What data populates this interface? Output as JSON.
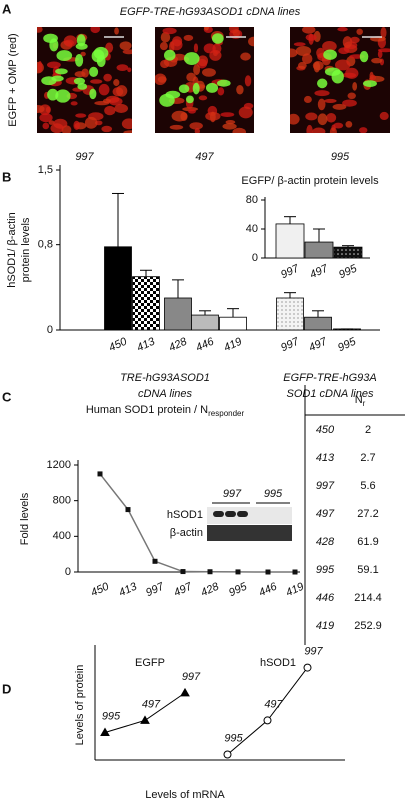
{
  "panel_a": {
    "label": "A",
    "title": "EGFP-TRE-hG93ASOD1 cDNA lines",
    "y_label": "EGFP + OMP (red)",
    "captions": [
      "997",
      "497",
      "995"
    ]
  },
  "panel_b": {
    "label": "B",
    "group_captions": [
      [
        "TRE-hG93ASOD1",
        "cDNA lines"
      ],
      [
        "EGFP-TRE-hG93A",
        "SOD1 cDNA lines"
      ]
    ]
  },
  "panel_c": {
    "label": "C",
    "blot": {
      "lanes": [
        "997",
        "995"
      ],
      "rows": [
        "hSOD1",
        "β-actin"
      ]
    },
    "table": {
      "header": "N",
      "header_sub": "r",
      "rows": [
        [
          "450",
          "2"
        ],
        [
          "413",
          "2.7"
        ],
        [
          "997",
          "5.6"
        ],
        [
          "497",
          "27.2"
        ],
        [
          "428",
          "61.9"
        ],
        [
          "995",
          "59.1"
        ],
        [
          "446",
          "214.4"
        ],
        [
          "419",
          "252.9"
        ]
      ]
    }
  },
  "panel_d": {
    "label": "D"
  },
  "chart_data": [
    {
      "type": "bar",
      "y_label": [
        "hSOD1/ β-actin",
        "protein levels"
      ],
      "categories": [
        "450",
        "413",
        "428",
        "446",
        "419",
        "997",
        "497",
        "995"
      ],
      "values": [
        0.78,
        0.5,
        0.3,
        0.14,
        0.12,
        0.3,
        0.12,
        0.01
      ],
      "errors": [
        0.5,
        0.06,
        0.17,
        0.04,
        0.08,
        0.05,
        0.06,
        0
      ],
      "colors": [
        "#000000",
        "#ffffff",
        "#888888",
        "#bbbbbb",
        "#ffffff",
        "#eeeeee",
        "#888888",
        "#111111"
      ],
      "fill_patterns": [
        "solid",
        "checker",
        "solid",
        "solid",
        "solid",
        "light-dots",
        "solid",
        "dark-dots"
      ],
      "ylim": [
        0,
        1.5
      ],
      "yticks": [
        0,
        {
          "value": 0.8,
          "label": "0,8"
        },
        {
          "value": 1.5,
          "label": "1,5"
        }
      ]
    },
    {
      "type": "bar",
      "title": "EGFP/ β-actin protein levels",
      "categories": [
        "997",
        "497",
        "995"
      ],
      "values": [
        47,
        22,
        15
      ],
      "errors": [
        10,
        18,
        2
      ],
      "colors": [
        "#f0f0f0",
        "#888888",
        "#333333"
      ],
      "fill_patterns": [
        "solid",
        "solid",
        "dark-dots"
      ],
      "ylim": [
        0,
        80
      ],
      "yticks": [
        0,
        40,
        80
      ]
    },
    {
      "type": "line",
      "title": "Human SOD1 protein / N",
      "title_sub": "responder",
      "y_label": "Fold levels",
      "categories": [
        "450",
        "413",
        "997",
        "497",
        "428",
        "995",
        "446",
        "419"
      ],
      "values": [
        1100,
        700,
        120,
        5,
        3,
        1,
        0,
        0
      ],
      "color": "#777777",
      "marker": "square",
      "ylim": [
        0,
        1200
      ],
      "yticks": [
        0,
        400,
        800,
        1200
      ]
    },
    {
      "type": "line",
      "x_label": "Levels of mRNA",
      "y_label": "Levels of protein",
      "xlim": [
        0,
        10
      ],
      "ylim": [
        0,
        10
      ],
      "series": [
        {
          "name": "EGFP",
          "color": "#000000",
          "marker": "triangle",
          "x": [
            0.4,
            2,
            3.6
          ],
          "values": [
            2.5,
            3.6,
            6.1
          ],
          "point_labels": [
            "995",
            "497",
            "997"
          ]
        },
        {
          "name": "hSOD1",
          "color": "#000000",
          "marker": "circle",
          "x": [
            5.3,
            6.9,
            8.5
          ],
          "values": [
            0.5,
            3.6,
            8.4
          ],
          "point_labels": [
            "995",
            "497",
            "997"
          ]
        }
      ]
    }
  ]
}
